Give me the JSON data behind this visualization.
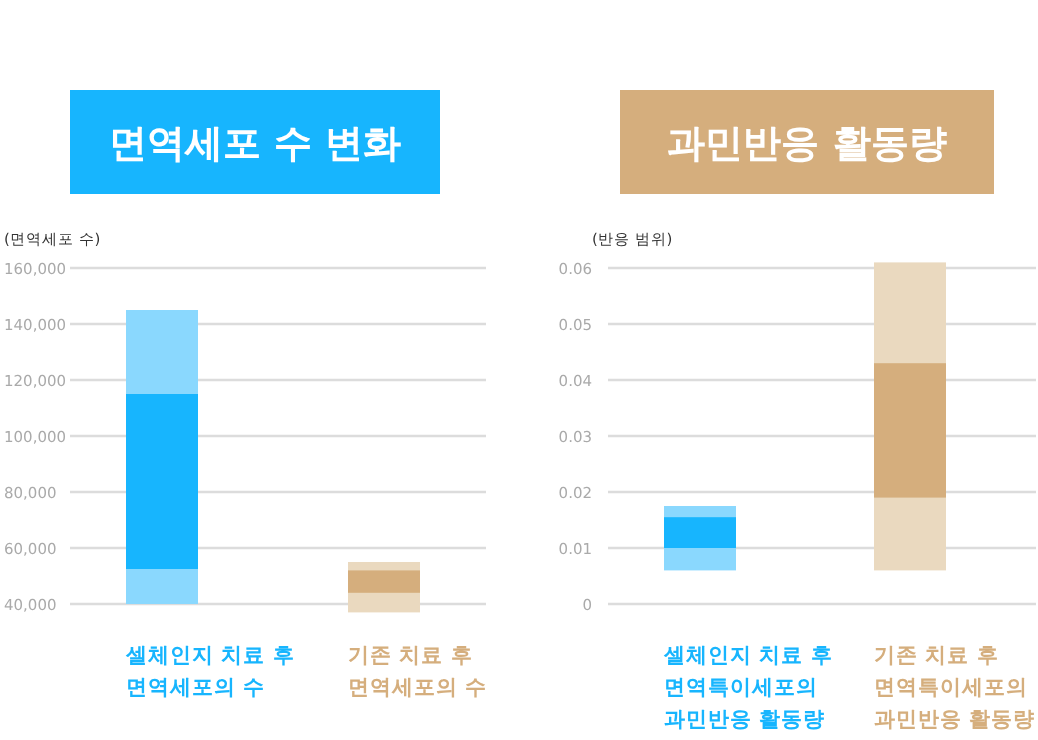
{
  "chart_data": [
    {
      "type": "bar",
      "title": "면역세포 수 변화",
      "ylabel": "(면역세포 수)",
      "categories": [
        "셀체인지 치료 후 면역세포의 수",
        "기존 치료 후 면역세포의 수"
      ],
      "ylim": [
        36000,
        160000
      ],
      "yticks": [
        {
          "value": 40000,
          "label": "40,000"
        },
        {
          "value": 60000,
          "label": "60,000"
        },
        {
          "value": 80000,
          "label": "80,000"
        },
        {
          "value": 100000,
          "label": "100,000"
        },
        {
          "value": 120000,
          "label": "120,000"
        },
        {
          "value": 140000,
          "label": "140,000"
        },
        {
          "value": 160000,
          "label": "160,000"
        }
      ],
      "grid": "y",
      "series": [
        {
          "colors": [
            "#8ad8fe",
            "#ead9bf"
          ],
          "base": [
            40000,
            37000
          ],
          "values": [
            105000,
            18000
          ]
        },
        {
          "colors": [
            "#17b5fe",
            "#d5ae7d"
          ],
          "base": [
            52500,
            44000
          ],
          "values": [
            62500,
            8000
          ]
        }
      ]
    },
    {
      "type": "bar",
      "title": "과민반응 활동량",
      "ylabel": "(반응 범위)",
      "categories": [
        "셀체인지 치료 후 면역특이세포의 과민반응 활동량",
        "기존 치료 후 면역특이세포의 과민반응 활동량"
      ],
      "ylim": [
        0,
        0.06
      ],
      "yticks": [
        0,
        0.01,
        0.02,
        0.03,
        0.04,
        0.05,
        0.06
      ],
      "grid": "y",
      "series": [
        {
          "colors": [
            "#8ad8fe",
            "#ead9bf"
          ],
          "base": [
            0.006,
            0.006
          ],
          "values": [
            0.0115,
            0.055
          ]
        },
        {
          "colors": [
            "#17b5fe",
            "#d5ae7d"
          ],
          "base": [
            0.01,
            0.019
          ],
          "values": [
            0.0055,
            0.024
          ]
        }
      ]
    }
  ]
}
